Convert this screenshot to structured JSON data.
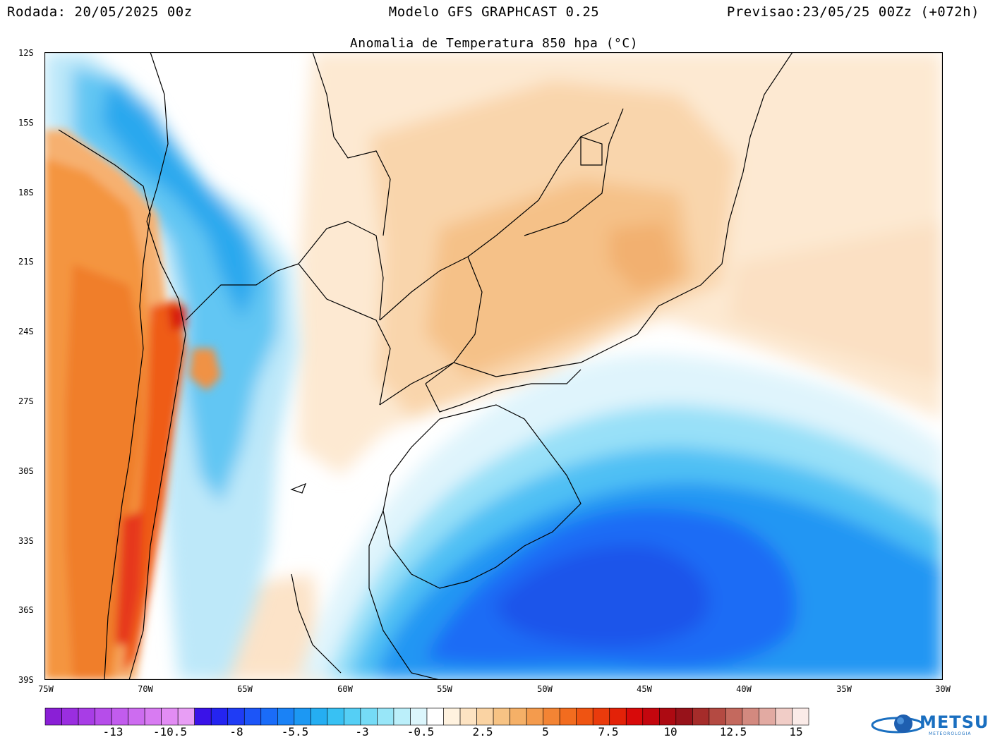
{
  "header": {
    "left": "Rodada: 20/05/2025 00z",
    "center": "Modelo GFS GRAPHCAST 0.25",
    "right": "Previsao:23/05/25 00Zz (+072h)"
  },
  "map": {
    "title": "Anomalia de Temperatura 850 hpa (°C)",
    "lat_labels": [
      "12S",
      "15S",
      "18S",
      "21S",
      "24S",
      "27S",
      "30S",
      "33S",
      "36S",
      "39S"
    ],
    "lon_labels": [
      "75W",
      "70W",
      "65W",
      "60W",
      "55W",
      "50W",
      "45W",
      "40W",
      "35W",
      "30W"
    ]
  },
  "colorbar": {
    "labels": [
      "-13",
      "-10.5",
      "-8",
      "-5.5",
      "-3",
      "-0.5",
      "2.5",
      "5",
      "7.5",
      "10",
      "12.5",
      "15"
    ],
    "colors": [
      "#8a1fd6",
      "#9a2ee0",
      "#a83de6",
      "#b64dea",
      "#c25cee",
      "#cd6cf0",
      "#d87bf2",
      "#e28cf4",
      "#e89ef5",
      "#3a12e8",
      "#2424f0",
      "#1f3cf5",
      "#1c55f8",
      "#1a6cf9",
      "#1a82f6",
      "#1c98f3",
      "#25aef2",
      "#38c1f3",
      "#55cff5",
      "#75dbf6",
      "#98e6f8",
      "#bbeffa",
      "#dcf6fc",
      "#ffffff",
      "#fff2df",
      "#fde3c2",
      "#fad3a3",
      "#f7c384",
      "#f5b067",
      "#f49b4d",
      "#f38434",
      "#f26c1f",
      "#ef5412",
      "#ea3b0c",
      "#e32208",
      "#d80a0a",
      "#c4060e",
      "#ad0a12",
      "#97121a",
      "#a52c2a",
      "#b44a42",
      "#c4695e",
      "#d3897f",
      "#e2aaa2",
      "#f1cdc7",
      "#fbebe8"
    ]
  },
  "logo": {
    "name": "METSUL",
    "sub": "METEOROLOGIA"
  }
}
